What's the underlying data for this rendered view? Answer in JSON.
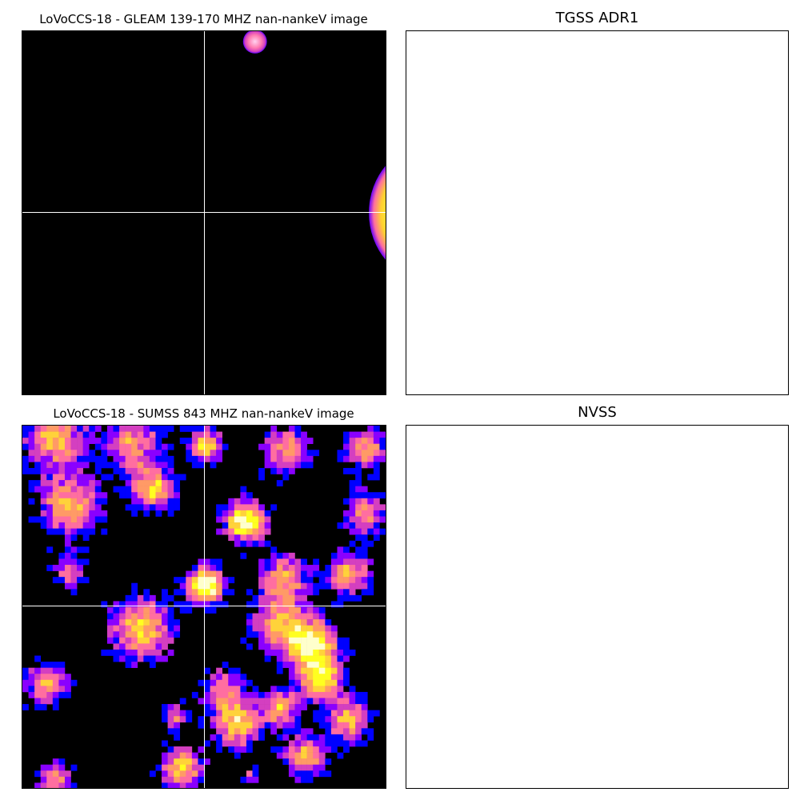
{
  "figure": {
    "panels": [
      {
        "title": "LoVoCCS-18 -  GLEAM 139-170 MHZ nan-nankeV image"
      },
      {
        "title": "TGSS ADR1"
      },
      {
        "title": "LoVoCCS-18 -  SUMSS 843 MHZ nan-nankeV image"
      },
      {
        "title": "NVSS"
      }
    ]
  },
  "colors": {
    "background": "#000000",
    "crosshair": "#ffffff",
    "colormap": [
      "#0000ff",
      "#8a00ff",
      "#d43fc0",
      "#ff6ea0",
      "#ff9a66",
      "#ffd23a",
      "#ffff20",
      "#ffffcc"
    ]
  }
}
